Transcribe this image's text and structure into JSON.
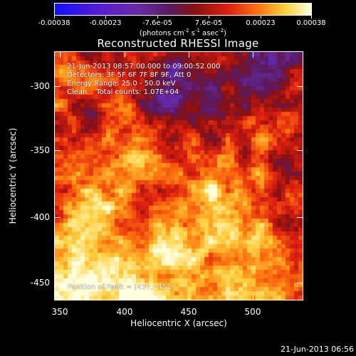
{
  "colorbar": {
    "ticks": [
      "-0.00038",
      "-0.00023",
      "-7.6e-05",
      "7.6e-05",
      "0.00023",
      "0.00038"
    ],
    "unit_main": "(photons cm",
    "unit_exp1": "-2",
    "unit_mid1": " s",
    "unit_exp2": "-1",
    "unit_mid2": " asec",
    "unit_exp3": "-2",
    "unit_end": ")"
  },
  "title": "Reconstructed RHESSI Image",
  "annotations": {
    "time_range": "21-Jun-2013 08:57:00.000 to 09:00:52.000",
    "detectors": "Detectors: 3F 5F 6F 7F 8F 9F, Att 0",
    "energy": "Energy Range: 25.0 - 50.0 keV",
    "clean": "Clean    Total counts: 1.07E+04",
    "peak": "Position of Peak = [437, -451]"
  },
  "axes": {
    "xlabel": "Heliocentric X (arcsec)",
    "ylabel": "Heliocentric Y (arcsec)",
    "xticks": [
      "350",
      "400",
      "450",
      "500"
    ],
    "yticks": [
      "-300",
      "-350",
      "-400",
      "-450"
    ],
    "xlim": [
      345,
      540
    ],
    "ylim": [
      -470,
      -275
    ]
  },
  "timestamp": "21-Jun-2013 06:56",
  "colors": {
    "colormap": [
      "#1010ff",
      "#6a2aa8",
      "#5a1a60",
      "#8a1010",
      "#e02010",
      "#ff7a10",
      "#ffd040",
      "#ffffe0"
    ]
  }
}
